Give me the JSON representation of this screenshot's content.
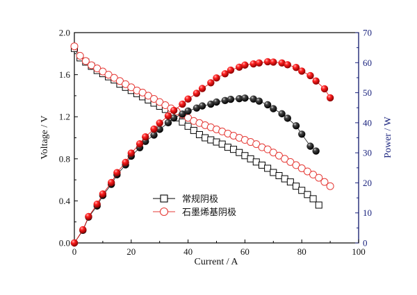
{
  "chart_data": {
    "type": "scatter",
    "x_axis": {
      "label": "Current / A",
      "range": [
        0,
        100
      ],
      "ticks": [
        0,
        20,
        40,
        60,
        80,
        100
      ]
    },
    "y_left": {
      "label": "Voltage / V",
      "range": [
        0.0,
        2.0
      ],
      "ticks": [
        "0.0",
        "0.4",
        "0.8",
        "1.2",
        "1.6",
        "2.0"
      ]
    },
    "y_right": {
      "label": "Power / W",
      "range": [
        0,
        70
      ],
      "ticks": [
        0,
        10,
        20,
        30,
        40,
        50,
        60,
        70
      ],
      "color": "#1a237e"
    },
    "legend": {
      "placement": "lower-center",
      "entries": [
        {
          "label": "常规阴极",
          "marker": "open-square",
          "color": "#000000"
        },
        {
          "label": "石墨烯基阴极",
          "marker": "open-circle",
          "color": "#e53935"
        }
      ]
    },
    "series": [
      {
        "name": "常规阴极",
        "quantity": "voltage",
        "axis": "left",
        "marker": "open-square",
        "color": "#000000",
        "x": [
          0,
          2,
          4,
          6,
          8,
          10,
          12,
          14,
          16,
          18,
          20,
          22,
          24,
          26,
          28,
          30,
          32,
          34,
          36,
          38,
          40,
          42,
          44,
          46,
          48,
          50,
          52,
          54,
          56,
          58,
          60,
          62,
          64,
          66,
          68,
          70,
          72,
          74,
          76,
          78,
          80,
          82,
          84,
          86
        ],
        "y": [
          1.85,
          1.76,
          1.72,
          1.68,
          1.64,
          1.61,
          1.58,
          1.55,
          1.51,
          1.48,
          1.45,
          1.42,
          1.39,
          1.36,
          1.33,
          1.3,
          1.27,
          1.23,
          1.19,
          1.15,
          1.11,
          1.07,
          1.03,
          1.0,
          0.98,
          0.96,
          0.94,
          0.91,
          0.89,
          0.86,
          0.83,
          0.8,
          0.77,
          0.74,
          0.71,
          0.67,
          0.64,
          0.61,
          0.58,
          0.54,
          0.5,
          0.46,
          0.42,
          0.36
        ]
      },
      {
        "name": "石墨烯基阴极",
        "quantity": "voltage",
        "axis": "left",
        "marker": "open-circle",
        "color": "#e53935",
        "x": [
          0,
          2,
          4,
          6,
          8,
          10,
          12,
          14,
          16,
          18,
          20,
          22,
          24,
          26,
          28,
          30,
          32,
          34,
          36,
          38,
          40,
          42,
          44,
          46,
          48,
          50,
          52,
          54,
          56,
          58,
          60,
          62,
          64,
          66,
          68,
          70,
          72,
          74,
          76,
          78,
          80,
          82,
          84,
          86,
          88,
          90
        ],
        "y": [
          1.87,
          1.78,
          1.73,
          1.69,
          1.66,
          1.63,
          1.6,
          1.57,
          1.54,
          1.51,
          1.48,
          1.45,
          1.43,
          1.4,
          1.37,
          1.34,
          1.31,
          1.28,
          1.25,
          1.22,
          1.19,
          1.16,
          1.14,
          1.12,
          1.1,
          1.08,
          1.06,
          1.04,
          1.02,
          1.0,
          0.98,
          0.96,
          0.94,
          0.91,
          0.89,
          0.86,
          0.83,
          0.8,
          0.77,
          0.74,
          0.71,
          0.68,
          0.65,
          0.62,
          0.58,
          0.54
        ]
      },
      {
        "name": "常规阴极",
        "quantity": "power",
        "axis": "right",
        "marker": "filled-circle",
        "color": "#111111",
        "x": [
          0,
          3,
          5,
          8,
          10,
          13,
          15,
          18,
          20,
          23,
          25,
          28,
          30,
          33,
          35,
          38,
          40,
          43,
          45,
          48,
          50,
          53,
          55,
          58,
          60,
          63,
          65,
          68,
          70,
          73,
          75,
          78,
          80,
          83,
          85
        ],
        "y": [
          0,
          4.2,
          8.6,
          12.3,
          15.8,
          19.5,
          22.7,
          26.0,
          28.9,
          31.7,
          33.8,
          35.9,
          37.8,
          40.0,
          41.6,
          42.9,
          43.9,
          44.9,
          45.6,
          46.2,
          46.9,
          47.4,
          47.8,
          48.0,
          48.2,
          47.9,
          47.2,
          46.0,
          44.7,
          43.0,
          41.5,
          39.0,
          36.2,
          32.2,
          30.6
        ]
      },
      {
        "name": "石墨烯基阴极",
        "quantity": "power",
        "axis": "right",
        "marker": "filled-circle",
        "color": "#e00000",
        "x": [
          0,
          3,
          5,
          8,
          10,
          13,
          15,
          18,
          20,
          23,
          25,
          28,
          30,
          33,
          35,
          38,
          40,
          43,
          45,
          48,
          50,
          53,
          55,
          58,
          60,
          63,
          65,
          68,
          70,
          73,
          75,
          78,
          80,
          83,
          85,
          88,
          90
        ],
        "y": [
          0,
          4.4,
          8.8,
          12.9,
          16.3,
          20.1,
          23.4,
          26.8,
          29.9,
          33.0,
          35.3,
          37.9,
          39.9,
          42.3,
          44.1,
          46.2,
          47.9,
          49.8,
          51.4,
          53.3,
          54.9,
          56.3,
          57.5,
          58.5,
          59.2,
          59.6,
          59.9,
          60.3,
          60.2,
          59.9,
          59.3,
          58.4,
          57.2,
          55.7,
          53.9,
          51.3,
          48.3
        ]
      }
    ]
  }
}
